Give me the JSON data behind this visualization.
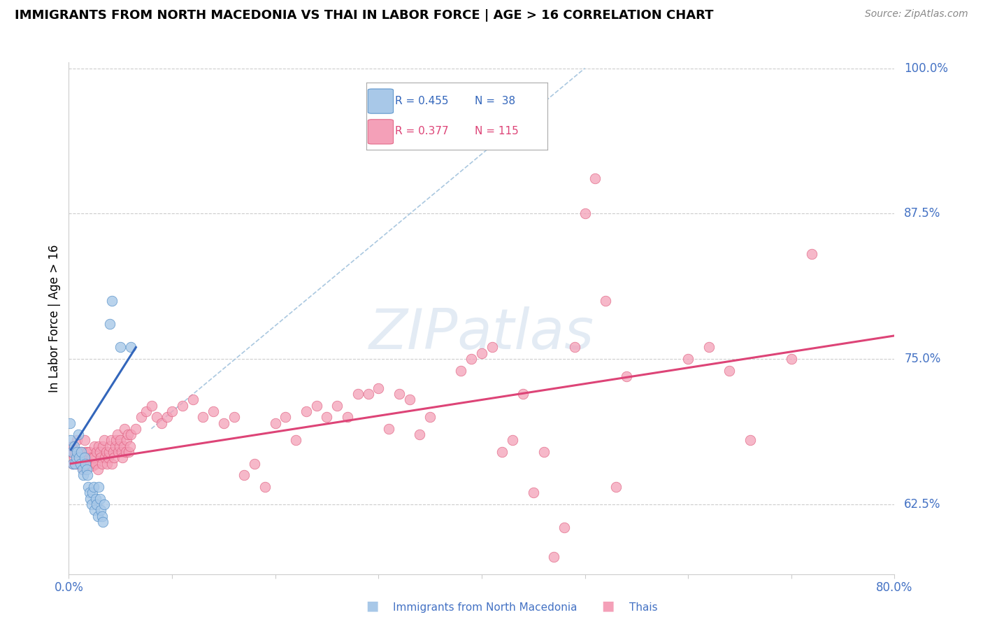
{
  "title": "IMMIGRANTS FROM NORTH MACEDONIA VS THAI IN LABOR FORCE | AGE > 16 CORRELATION CHART",
  "source": "Source: ZipAtlas.com",
  "ylabel": "In Labor Force | Age > 16",
  "right_ytick_labels": [
    "62.5%",
    "75.0%",
    "87.5%",
    "100.0%"
  ],
  "right_ytick_values": [
    0.625,
    0.75,
    0.875,
    1.0
  ],
  "xlim": [
    0.0,
    0.8
  ],
  "ylim": [
    0.565,
    1.005
  ],
  "watermark": "ZIPatlas",
  "legend_R_blue": "R = 0.455",
  "legend_N_blue": "N =  38",
  "legend_R_pink": "R = 0.377",
  "legend_N_pink": "N = 115",
  "blue_color": "#a8c8e8",
  "pink_color": "#f4a0b8",
  "blue_edge_color": "#5590c8",
  "pink_edge_color": "#e06080",
  "blue_trend_color": "#3366bb",
  "pink_trend_color": "#dd4477",
  "blue_label_color": "#3366bb",
  "pink_label_color": "#dd4477",
  "axis_label_color": "#4472c4",
  "blue_dots": [
    [
      0.001,
      0.695
    ],
    [
      0.002,
      0.68
    ],
    [
      0.003,
      0.67
    ],
    [
      0.004,
      0.66
    ],
    [
      0.005,
      0.675
    ],
    [
      0.006,
      0.66
    ],
    [
      0.007,
      0.665
    ],
    [
      0.008,
      0.67
    ],
    [
      0.009,
      0.685
    ],
    [
      0.01,
      0.665
    ],
    [
      0.011,
      0.66
    ],
    [
      0.012,
      0.67
    ],
    [
      0.013,
      0.655
    ],
    [
      0.014,
      0.65
    ],
    [
      0.015,
      0.665
    ],
    [
      0.016,
      0.66
    ],
    [
      0.017,
      0.655
    ],
    [
      0.018,
      0.65
    ],
    [
      0.019,
      0.64
    ],
    [
      0.02,
      0.635
    ],
    [
      0.021,
      0.63
    ],
    [
      0.022,
      0.625
    ],
    [
      0.023,
      0.635
    ],
    [
      0.024,
      0.64
    ],
    [
      0.025,
      0.62
    ],
    [
      0.026,
      0.63
    ],
    [
      0.027,
      0.625
    ],
    [
      0.028,
      0.615
    ],
    [
      0.029,
      0.64
    ],
    [
      0.03,
      0.63
    ],
    [
      0.031,
      0.62
    ],
    [
      0.032,
      0.615
    ],
    [
      0.033,
      0.61
    ],
    [
      0.034,
      0.625
    ],
    [
      0.04,
      0.78
    ],
    [
      0.042,
      0.8
    ],
    [
      0.05,
      0.76
    ],
    [
      0.06,
      0.76
    ]
  ],
  "pink_dots": [
    [
      0.002,
      0.67
    ],
    [
      0.003,
      0.675
    ],
    [
      0.004,
      0.66
    ],
    [
      0.005,
      0.665
    ],
    [
      0.006,
      0.67
    ],
    [
      0.007,
      0.66
    ],
    [
      0.008,
      0.68
    ],
    [
      0.009,
      0.67
    ],
    [
      0.01,
      0.66
    ],
    [
      0.011,
      0.665
    ],
    [
      0.012,
      0.67
    ],
    [
      0.013,
      0.66
    ],
    [
      0.014,
      0.655
    ],
    [
      0.015,
      0.68
    ],
    [
      0.016,
      0.67
    ],
    [
      0.017,
      0.665
    ],
    [
      0.018,
      0.67
    ],
    [
      0.019,
      0.66
    ],
    [
      0.02,
      0.67
    ],
    [
      0.021,
      0.66
    ],
    [
      0.022,
      0.665
    ],
    [
      0.023,
      0.658
    ],
    [
      0.024,
      0.665
    ],
    [
      0.025,
      0.675
    ],
    [
      0.026,
      0.66
    ],
    [
      0.027,
      0.67
    ],
    [
      0.028,
      0.655
    ],
    [
      0.029,
      0.675
    ],
    [
      0.03,
      0.67
    ],
    [
      0.031,
      0.665
    ],
    [
      0.032,
      0.66
    ],
    [
      0.033,
      0.675
    ],
    [
      0.034,
      0.68
    ],
    [
      0.035,
      0.665
    ],
    [
      0.036,
      0.67
    ],
    [
      0.037,
      0.66
    ],
    [
      0.038,
      0.665
    ],
    [
      0.039,
      0.67
    ],
    [
      0.04,
      0.675
    ],
    [
      0.041,
      0.68
    ],
    [
      0.042,
      0.66
    ],
    [
      0.043,
      0.67
    ],
    [
      0.044,
      0.665
    ],
    [
      0.045,
      0.675
    ],
    [
      0.046,
      0.68
    ],
    [
      0.047,
      0.685
    ],
    [
      0.048,
      0.67
    ],
    [
      0.049,
      0.675
    ],
    [
      0.05,
      0.68
    ],
    [
      0.051,
      0.67
    ],
    [
      0.052,
      0.665
    ],
    [
      0.053,
      0.675
    ],
    [
      0.054,
      0.69
    ],
    [
      0.055,
      0.67
    ],
    [
      0.056,
      0.68
    ],
    [
      0.057,
      0.685
    ],
    [
      0.058,
      0.67
    ],
    [
      0.059,
      0.675
    ],
    [
      0.06,
      0.685
    ],
    [
      0.065,
      0.69
    ],
    [
      0.07,
      0.7
    ],
    [
      0.075,
      0.705
    ],
    [
      0.08,
      0.71
    ],
    [
      0.085,
      0.7
    ],
    [
      0.09,
      0.695
    ],
    [
      0.095,
      0.7
    ],
    [
      0.1,
      0.705
    ],
    [
      0.11,
      0.71
    ],
    [
      0.12,
      0.715
    ],
    [
      0.13,
      0.7
    ],
    [
      0.14,
      0.705
    ],
    [
      0.15,
      0.695
    ],
    [
      0.16,
      0.7
    ],
    [
      0.17,
      0.65
    ],
    [
      0.18,
      0.66
    ],
    [
      0.19,
      0.64
    ],
    [
      0.2,
      0.695
    ],
    [
      0.21,
      0.7
    ],
    [
      0.22,
      0.68
    ],
    [
      0.23,
      0.705
    ],
    [
      0.24,
      0.71
    ],
    [
      0.25,
      0.7
    ],
    [
      0.26,
      0.71
    ],
    [
      0.27,
      0.7
    ],
    [
      0.28,
      0.72
    ],
    [
      0.29,
      0.72
    ],
    [
      0.3,
      0.725
    ],
    [
      0.31,
      0.69
    ],
    [
      0.32,
      0.72
    ],
    [
      0.33,
      0.715
    ],
    [
      0.34,
      0.685
    ],
    [
      0.35,
      0.7
    ],
    [
      0.38,
      0.74
    ],
    [
      0.39,
      0.75
    ],
    [
      0.4,
      0.755
    ],
    [
      0.41,
      0.76
    ],
    [
      0.42,
      0.67
    ],
    [
      0.43,
      0.68
    ],
    [
      0.44,
      0.72
    ],
    [
      0.45,
      0.635
    ],
    [
      0.46,
      0.67
    ],
    [
      0.47,
      0.58
    ],
    [
      0.48,
      0.605
    ],
    [
      0.49,
      0.76
    ],
    [
      0.5,
      0.875
    ],
    [
      0.51,
      0.905
    ],
    [
      0.52,
      0.8
    ],
    [
      0.53,
      0.64
    ],
    [
      0.54,
      0.735
    ],
    [
      0.6,
      0.75
    ],
    [
      0.62,
      0.76
    ],
    [
      0.64,
      0.74
    ],
    [
      0.66,
      0.68
    ],
    [
      0.7,
      0.75
    ],
    [
      0.72,
      0.84
    ]
  ],
  "blue_trend_x": [
    0.002,
    0.065
  ],
  "blue_trend_y_start": 0.672,
  "blue_trend_y_end": 0.76,
  "pink_trend_x_start": 0.002,
  "pink_trend_x_end": 0.8,
  "pink_trend_y_start": 0.66,
  "pink_trend_y_end": 0.77,
  "diag_line_x": [
    0.08,
    0.5
  ],
  "diag_line_y": [
    0.69,
    1.0
  ],
  "diag_color": "#aac8e0"
}
